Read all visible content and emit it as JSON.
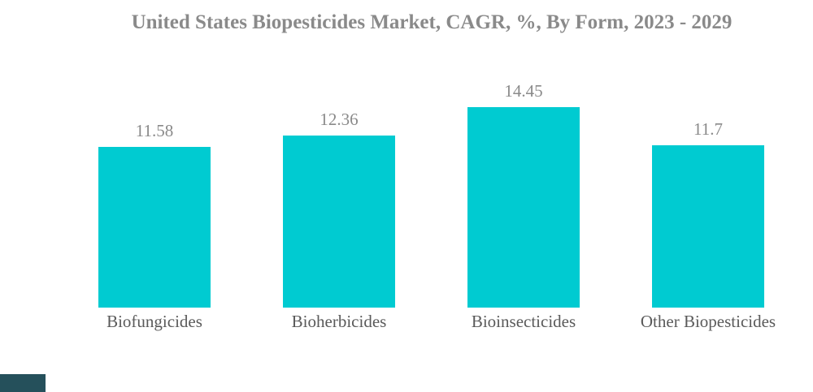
{
  "title": "United States Biopesticides Market, CAGR, %, By Form, 2023 - 2029",
  "chart_data": {
    "type": "bar",
    "title": "United States Biopesticides Market, CAGR, %, By Form, 2023 - 2029",
    "categories": [
      "Biofungicides",
      "Bioherbicides",
      "Bioinsecticides",
      "Other Biopesticides"
    ],
    "values": [
      11.58,
      12.36,
      14.45,
      11.7
    ],
    "value_labels": [
      "11.58",
      "12.36",
      "14.45",
      "11.7"
    ],
    "xlabel": "",
    "ylabel": "",
    "ylim": [
      0,
      16
    ],
    "grid": false,
    "legend": false,
    "axes_visible": false,
    "bar_color": "#00cbd1",
    "title_color": "#8a8a8a",
    "value_label_color": "#8a8a8a",
    "category_label_color": "#5a5a5a",
    "background": "#ffffff"
  },
  "watermark": {
    "color": "#25505b"
  }
}
